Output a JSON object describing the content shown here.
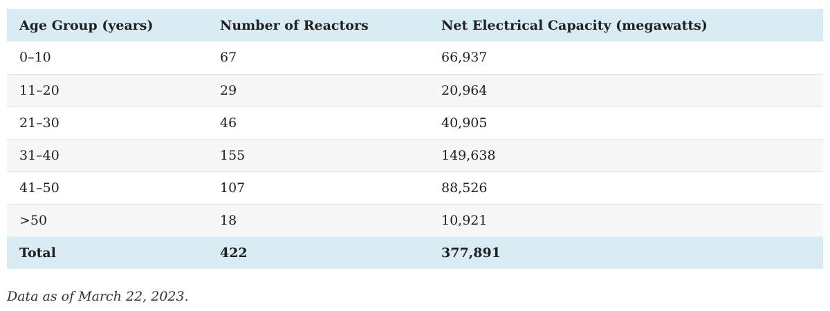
{
  "table": {
    "headers": [
      "Age Group (years)",
      "Number of Reactors",
      "Net Electrical Capacity (megawatts)"
    ],
    "rows": [
      [
        "0–10",
        "67",
        "66,937"
      ],
      [
        "11–20",
        "29",
        "20,964"
      ],
      [
        "21–30",
        "46",
        "40,905"
      ],
      [
        "31–40",
        "155",
        "149,638"
      ],
      [
        "41–50",
        "107",
        "88,526"
      ],
      [
        ">50",
        "18",
        "10,921"
      ]
    ],
    "total": [
      "Total",
      "422",
      "377,891"
    ]
  },
  "note": "Data as of March 22, 2023."
}
